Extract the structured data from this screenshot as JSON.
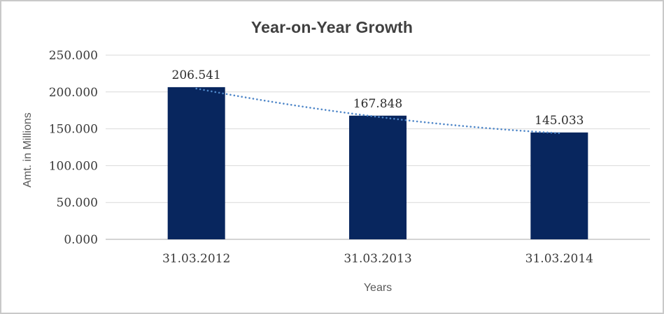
{
  "chart_data": {
    "type": "bar",
    "title": "Year-on-Year Growth",
    "xlabel": "Years",
    "ylabel": "Amt. in Millions",
    "categories": [
      "31.03.2012",
      "31.03.2013",
      "31.03.2014"
    ],
    "values": [
      206.541,
      167.848,
      145.033
    ],
    "value_labels": [
      "206.541",
      "167.848",
      "145.033"
    ],
    "ylim": [
      0,
      250
    ],
    "y_ticks": [
      0,
      50,
      100,
      150,
      200,
      250
    ],
    "y_tick_labels": [
      "0.000",
      "50.000",
      "100.000",
      "150.000",
      "200.000",
      "250.000"
    ],
    "grid": true,
    "legend": false,
    "trendline": {
      "style": "dotted",
      "color": "#4e86c8"
    },
    "colors": {
      "bar": "#08265e",
      "gridline": "#d9d9d9",
      "axis_line": "#a8a8a8",
      "title": "#404040",
      "tick_label": "#3a3a3a",
      "data_label": "#2b2b2b",
      "axis_title": "#595959",
      "canvas_border": "#c9c9c9",
      "background": "#ffffff"
    }
  }
}
